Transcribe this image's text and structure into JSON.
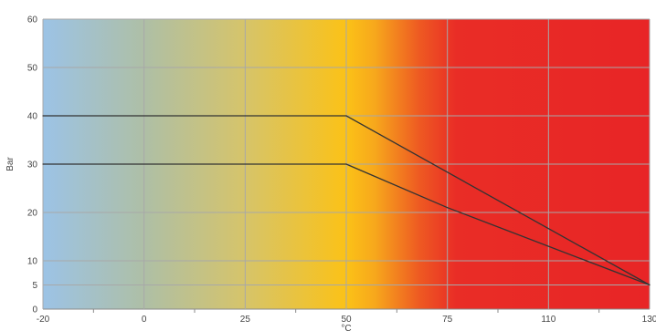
{
  "chart_data": {
    "type": "line",
    "title": "",
    "xlabel": "°C",
    "ylabel": "Bar",
    "xlim": [
      -20,
      130
    ],
    "ylim": [
      0,
      60
    ],
    "x_ticks": [
      -20,
      0,
      25,
      50,
      75,
      110,
      130
    ],
    "y_ticks": [
      0,
      5,
      10,
      20,
      30,
      40,
      50,
      60
    ],
    "grid": true,
    "legend": "none",
    "background_gradient": [
      {
        "x": -20,
        "color": "#9cc3e6"
      },
      {
        "x": 0,
        "color": "#aebfa6"
      },
      {
        "x": 25,
        "color": "#d6c46a"
      },
      {
        "x": 50,
        "color": "#fbc217"
      },
      {
        "x": 57,
        "color": "#f7a81c"
      },
      {
        "x": 68,
        "color": "#ee5a22"
      },
      {
        "x": 78,
        "color": "#e92d26"
      },
      {
        "x": 130,
        "color": "#e82526"
      }
    ],
    "line_color": "#333333",
    "series": [
      {
        "x": [
          -20,
          50,
          130
        ],
        "values": [
          40,
          40,
          5
        ]
      },
      {
        "x": [
          -20,
          50,
          75,
          130
        ],
        "values": [
          30,
          30,
          21,
          5
        ]
      }
    ]
  }
}
